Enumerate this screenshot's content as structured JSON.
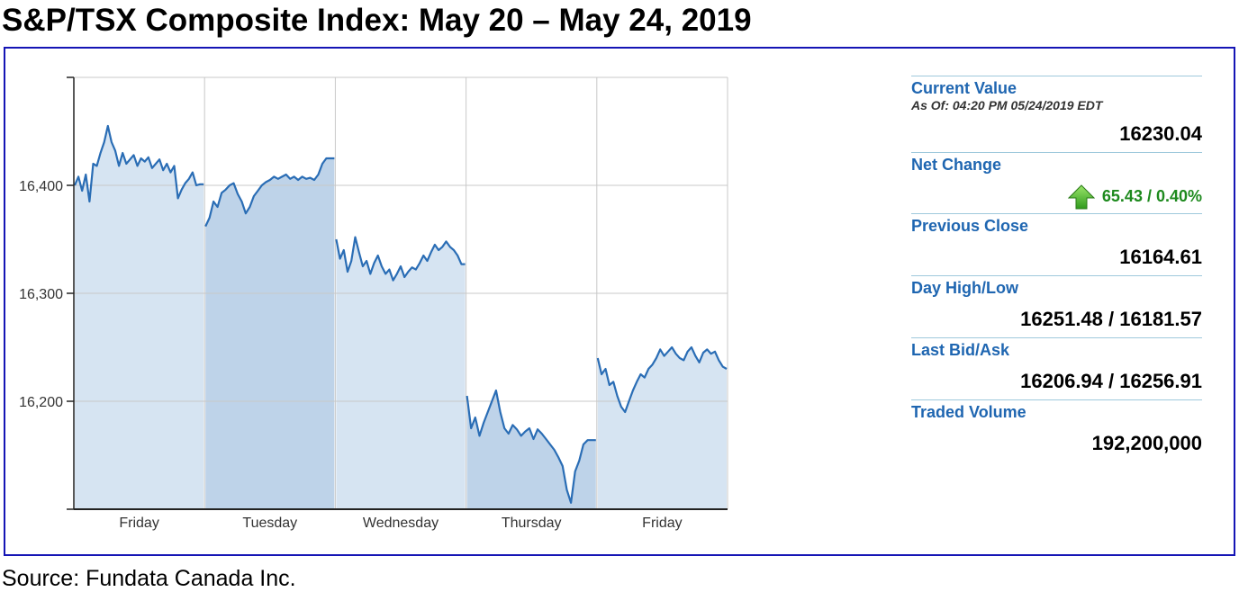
{
  "title": "S&P/TSX Composite Index: May 20 – May 24, 2019",
  "source": "Source: Fundata Canada Inc.",
  "stats": {
    "current_value_label": "Current Value",
    "as_of": "As Of: 04:20 PM 05/24/2019 EDT",
    "current_value": "16230.04",
    "net_change_label": "Net Change",
    "net_change": "65.43 / 0.40%",
    "net_change_direction_icon": "green-up-arrow-icon",
    "previous_close_label": "Previous Close",
    "previous_close": "16164.61",
    "day_high_low_label": "Day High/Low",
    "day_high_low": "16251.48 / 16181.57",
    "last_bid_ask_label": "Last Bid/Ask",
    "last_bid_ask": "16206.94 / 16256.91",
    "traded_volume_label": "Traded Volume",
    "traded_volume": "192,200,000"
  },
  "colors": {
    "frame_border": "#1515b5",
    "line": "#2a6db5",
    "fill_light": "#d6e4f2",
    "fill_dark": "#bed3e9",
    "label_blue": "#1f66b1",
    "positive_green": "#1e8a1e"
  },
  "chart_data": {
    "type": "area",
    "title": "",
    "xlabel": "",
    "ylabel": "",
    "ylim": [
      16100,
      16500
    ],
    "yticks": [
      16200,
      16300,
      16400
    ],
    "ytick_labels": [
      "16,200",
      "16,300",
      "16,400"
    ],
    "grid": true,
    "categories": [
      "Friday",
      "Tuesday",
      "Wednesday",
      "Thursday",
      "Friday"
    ],
    "series": [
      {
        "segments": [
          [
            16400,
            16408,
            16395,
            16410,
            16385,
            16420,
            16418,
            16430,
            16440,
            16455,
            16440,
            16432,
            16418,
            16430,
            16420,
            16424,
            16428,
            16418,
            16425,
            16422,
            16426,
            16416,
            16420,
            16424,
            16414,
            16420,
            16412,
            16418,
            16388,
            16396,
            16402,
            16406,
            16412,
            16400,
            16401,
            16401
          ],
          [
            16362,
            16370,
            16385,
            16380,
            16393,
            16396,
            16400,
            16402,
            16392,
            16385,
            16374,
            16380,
            16390,
            16395,
            16400,
            16403,
            16405,
            16408,
            16406,
            16408,
            16410,
            16406,
            16408,
            16405,
            16408,
            16406,
            16407,
            16405,
            16410,
            16420,
            16425,
            16425,
            16425
          ],
          [
            16350,
            16332,
            16340,
            16320,
            16330,
            16352,
            16338,
            16325,
            16330,
            16318,
            16328,
            16335,
            16325,
            16318,
            16322,
            16312,
            16318,
            16325,
            16315,
            16320,
            16324,
            16322,
            16328,
            16335,
            16330,
            16338,
            16345,
            16340,
            16343,
            16348,
            16343,
            16340,
            16335,
            16327,
            16327
          ],
          [
            16205,
            16175,
            16185,
            16168,
            16180,
            16190,
            16200,
            16210,
            16190,
            16175,
            16170,
            16178,
            16174,
            16168,
            16172,
            16175,
            16165,
            16174,
            16170,
            16165,
            16160,
            16155,
            16148,
            16140,
            16118,
            16106,
            16135,
            16145,
            16160,
            16164,
            16164,
            16164
          ],
          [
            16240,
            16225,
            16230,
            16215,
            16218,
            16205,
            16195,
            16190,
            16200,
            16210,
            16218,
            16225,
            16222,
            16230,
            16234,
            16240,
            16248,
            16242,
            16246,
            16250,
            16244,
            16240,
            16238,
            16246,
            16250,
            16242,
            16236,
            16245,
            16248,
            16244,
            16246,
            16238,
            16232,
            16230
          ]
        ]
      }
    ]
  }
}
